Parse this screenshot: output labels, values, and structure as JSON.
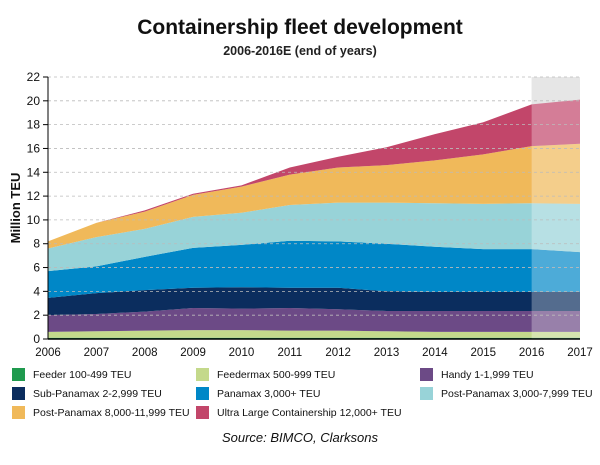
{
  "chart_data": {
    "type": "area",
    "stacked": true,
    "title": "Containership fleet development",
    "subtitle": "2006-2016E (end of years)",
    "ylabel": "Million TEU",
    "xlabel": "",
    "x": [
      2006,
      2007,
      2008,
      2009,
      2010,
      2011,
      2012,
      2013,
      2014,
      2015,
      2016,
      2017
    ],
    "ylim": [
      0,
      22
    ],
    "yticks": [
      0,
      2,
      4,
      6,
      8,
      10,
      12,
      14,
      16,
      18,
      20,
      22
    ],
    "grid": "horizontal dashed",
    "legend_placement": "bottom",
    "shaded_forecast_region": [
      2016,
      2017
    ],
    "series": [
      {
        "name": "Feeder 100-499 TEU",
        "color": "#1f9a4e",
        "values": [
          0.1,
          0.1,
          0.1,
          0.1,
          0.1,
          0.1,
          0.1,
          0.1,
          0.1,
          0.1,
          0.1,
          0.1
        ]
      },
      {
        "name": "Feedermax 500-999 TEU",
        "color": "#c4d98b",
        "values": [
          0.5,
          0.55,
          0.6,
          0.65,
          0.65,
          0.6,
          0.6,
          0.55,
          0.5,
          0.5,
          0.5,
          0.5
        ]
      },
      {
        "name": "Handy 1-1,999 TEU",
        "color": "#6c4a86",
        "values": [
          1.4,
          1.45,
          1.6,
          1.85,
          1.8,
          1.9,
          1.8,
          1.7,
          1.75,
          1.75,
          1.75,
          1.75
        ]
      },
      {
        "name": "Sub-Panamax 2-2,999 TEU",
        "color": "#0b2d5e",
        "values": [
          1.45,
          1.75,
          1.8,
          1.7,
          1.8,
          1.7,
          1.8,
          1.65,
          1.6,
          1.6,
          1.6,
          1.6
        ]
      },
      {
        "name": "Panamax 3,000+ TEU",
        "color": "#0087c7",
        "values": [
          2.25,
          2.25,
          2.8,
          3.35,
          3.55,
          3.95,
          3.9,
          4.0,
          3.8,
          3.6,
          3.6,
          3.35
        ]
      },
      {
        "name": "Post-Panamax 3,000-7,999 TEU",
        "color": "#98d3d8",
        "values": [
          1.9,
          2.45,
          2.35,
          2.6,
          2.7,
          3.0,
          3.25,
          3.45,
          3.65,
          3.8,
          3.85,
          4.05
        ]
      },
      {
        "name": "Post-Panamax 8,000-11,999 TEU",
        "color": "#f0b95a",
        "values": [
          0.6,
          1.2,
          1.45,
          1.85,
          2.2,
          2.55,
          2.95,
          3.15,
          3.6,
          4.15,
          4.8,
          5.05
        ]
      },
      {
        "name": "Ultra Large Containership 12,000+ TEU",
        "color": "#c2466a",
        "values": [
          0,
          0,
          0.1,
          0.1,
          0.1,
          0.6,
          0.9,
          1.5,
          2.2,
          2.7,
          3.5,
          3.7
        ]
      }
    ]
  },
  "source": "Source: BIMCO, Clarksons"
}
